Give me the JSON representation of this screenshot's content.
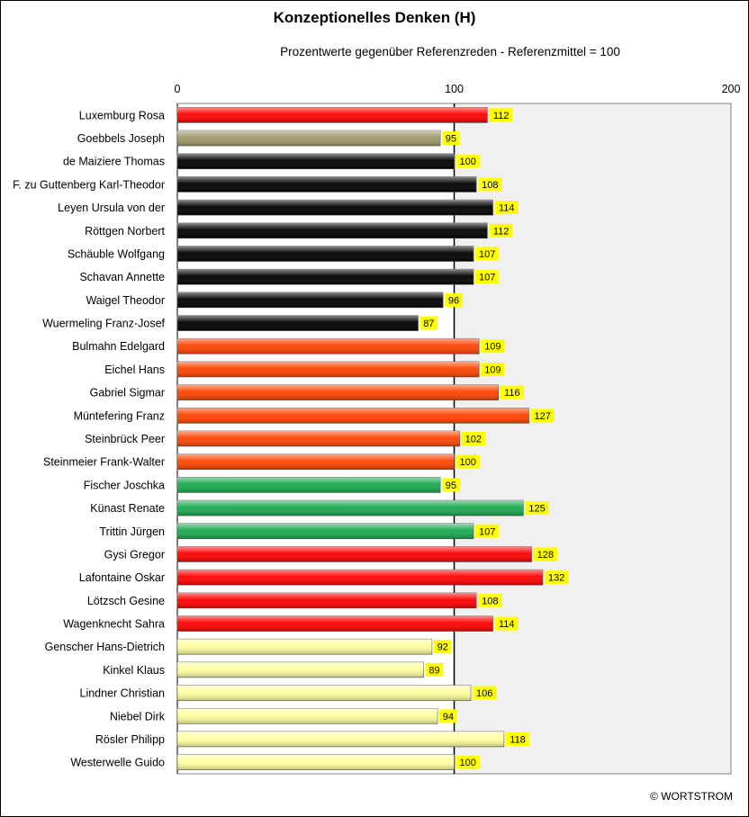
{
  "title": "Konzeptionelles Denken (H)",
  "subtitle": "Prozentwerte  gegenüber Referenzreden - Referenzmittel = 100",
  "footer": "© WORTSTROM",
  "colors": {
    "plot_bg_right": "#f0f0f0",
    "label_bg": "#ffff00"
  },
  "chart_data": {
    "type": "bar",
    "orientation": "horizontal",
    "xlim": [
      0,
      200
    ],
    "ticks": [
      0,
      100,
      200
    ],
    "grid": "vertical gridline at 100",
    "categories": [
      "Luxemburg Rosa",
      "Goebbels Joseph",
      "de Maiziere Thomas",
      "F. zu Guttenberg Karl-Theodor",
      "Leyen Ursula von der",
      "Röttgen Norbert",
      "Schäuble Wolfgang",
      "Schavan Annette",
      "Waigel Theodor",
      "Wuermeling Franz-Josef",
      "Bulmahn Edelgard",
      "Eichel Hans",
      "Gabriel Sigmar",
      "Müntefering Franz",
      "Steinbrück Peer",
      "Steinmeier Frank-Walter",
      "Fischer Joschka",
      "Künast Renate",
      "Trittin Jürgen",
      "Gysi Gregor",
      "Lafontaine Oskar",
      "Lötzsch Gesine",
      "Wagenknecht Sahra",
      "Genscher Hans-Dietrich",
      "Kinkel Klaus",
      "Lindner Christian",
      "Niebel Dirk",
      "Rösler Philipp",
      "Westerwelle Guido"
    ],
    "values": [
      112,
      95,
      100,
      108,
      114,
      112,
      107,
      107,
      96,
      87,
      109,
      109,
      116,
      127,
      102,
      100,
      95,
      125,
      107,
      128,
      132,
      108,
      114,
      92,
      89,
      106,
      94,
      118,
      100
    ],
    "bar_colors": [
      "#ff0000",
      "#a09868",
      "#000000",
      "#000000",
      "#000000",
      "#000000",
      "#000000",
      "#000000",
      "#000000",
      "#000000",
      "#ff4400",
      "#ff4400",
      "#ff4400",
      "#ff4400",
      "#ff4400",
      "#ff4400",
      "#1aaa50",
      "#1aaa50",
      "#1aaa50",
      "#ff0000",
      "#ff0000",
      "#ff0000",
      "#ff0000",
      "#ffffa0",
      "#ffffa0",
      "#ffffa0",
      "#ffffa0",
      "#ffffa0",
      "#ffffa0"
    ]
  }
}
